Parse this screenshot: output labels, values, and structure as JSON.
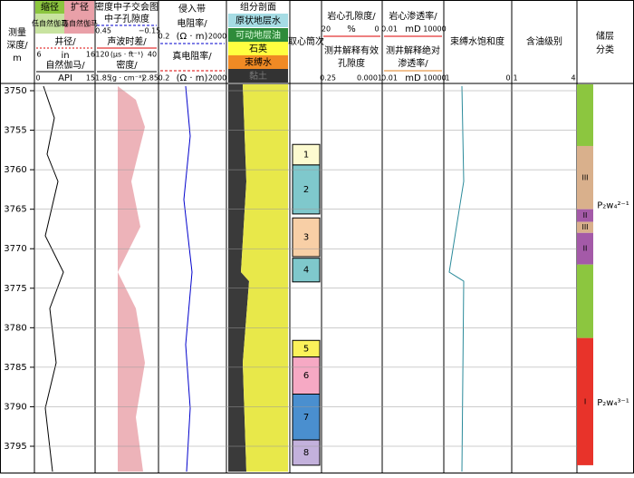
{
  "depth_header": [
    "测量",
    "深度/",
    "m"
  ],
  "track1": {
    "legend": [
      "缩径",
      "扩径",
      "低自然伽马",
      "高自然伽马"
    ],
    "caliper": "井径/",
    "caliper_min": "6",
    "caliper_unit": "in",
    "caliper_max": "16",
    "gr": "自然伽马/",
    "gr_min": "0",
    "gr_unit": "API",
    "gr_max": "15"
  },
  "track2": {
    "title": "密度中子交会图",
    "neutron": "中子孔隙度",
    "neutron_min": "0.45",
    "neutron_max": "−0.15",
    "sonic": "声波时差/",
    "sonic_min": "120",
    "sonic_unit": "(μs · ft⁻¹)",
    "sonic_max": "40",
    "density": "密度/",
    "density_min": "1.85",
    "density_unit": "(g · cm⁻³)",
    "density_max": "2.85"
  },
  "track3": {
    "title": "侵入带",
    "rxo": "电阻率/",
    "rxo_min": "0.2",
    "rxo_unit": "(Ω · m)",
    "rxo_max": "2000",
    "rt": "真电阻率/",
    "rt_min": "0.2",
    "rt_unit": "(Ω · m)",
    "rt_max": "2000"
  },
  "track4": {
    "title": "组分剖面",
    "legend": [
      "原状地层水",
      "可动地层油",
      "石英",
      "束缚水",
      "黏土"
    ]
  },
  "track5": {
    "title": "取心筒次"
  },
  "track6": {
    "core": "岩心孔隙度/",
    "core_min": "20",
    "core_unit": "%",
    "core_max": "0",
    "log": "测井解释有效",
    "log2": "孔隙度",
    "log_min": "0.25",
    "log_max": "0.0001"
  },
  "track7": {
    "core": "岩心渗透率/",
    "core_min": "0.01",
    "core_unit": "mD",
    "core_max": "10000",
    "log": "测井解释绝对",
    "log2": "渗透率/",
    "log_min": "0.01",
    "log_unit": "mD",
    "log_max": "10000"
  },
  "track8": {
    "title": "束缚水饱和度",
    "min": "1",
    "max": "0"
  },
  "track9": {
    "title": "含油级别",
    "min": "1",
    "max": "4"
  },
  "track10": {
    "title": [
      "储层",
      "分类"
    ]
  },
  "depth_ticks": [
    3750,
    3755,
    3760,
    3765,
    3770,
    3775,
    3780,
    3785,
    3790,
    3795
  ],
  "cores": [
    {
      "label": "1",
      "top": 3756.8,
      "bottom": 3759.4,
      "color": "#fdfbd0"
    },
    {
      "label": "2",
      "top": 3759.4,
      "bottom": 3765.6,
      "color": "#7fc8cc"
    },
    {
      "label": "3",
      "top": 3766.1,
      "bottom": 3771,
      "color": "#f8cfa6"
    },
    {
      "label": "4",
      "top": 3771.2,
      "bottom": 3774.2,
      "color": "#7fc8cc"
    },
    {
      "label": "5",
      "top": 3781.6,
      "bottom": 3783.7,
      "color": "#fcf25a"
    },
    {
      "label": "6",
      "top": 3783.7,
      "bottom": 3788.4,
      "color": "#f6a9c4"
    },
    {
      "label": "7",
      "top": 3788.4,
      "bottom": 3794.2,
      "color": "#4a8fcf"
    },
    {
      "label": "8",
      "top": 3794.2,
      "bottom": 3797.4,
      "color": "#c3b1dc"
    }
  ],
  "classes": [
    {
      "label": null,
      "top": 3749,
      "bottom": 3757,
      "color": "#8cc63f"
    },
    {
      "label": "III",
      "top": 3757,
      "bottom": 3765,
      "color": "#d9b08c"
    },
    {
      "label": "II",
      "top": 3765,
      "bottom": 3766.6,
      "color": "#a45aa8"
    },
    {
      "label": "III",
      "top": 3766.6,
      "bottom": 3768,
      "color": "#d9b08c"
    },
    {
      "label": "II",
      "top": 3768,
      "bottom": 3772,
      "color": "#a45aa8"
    },
    {
      "label": null,
      "top": 3772,
      "bottom": 3781.3,
      "color": "#8cc63f"
    },
    {
      "label": "I",
      "top": 3781.3,
      "bottom": 3797.4,
      "color": "#e8332a"
    }
  ],
  "formations": [
    {
      "label": "P₂w₄²⁻¹",
      "depth": 3764.5
    },
    {
      "label": "P₂w₄³⁻¹",
      "depth": 3789.5
    }
  ]
}
